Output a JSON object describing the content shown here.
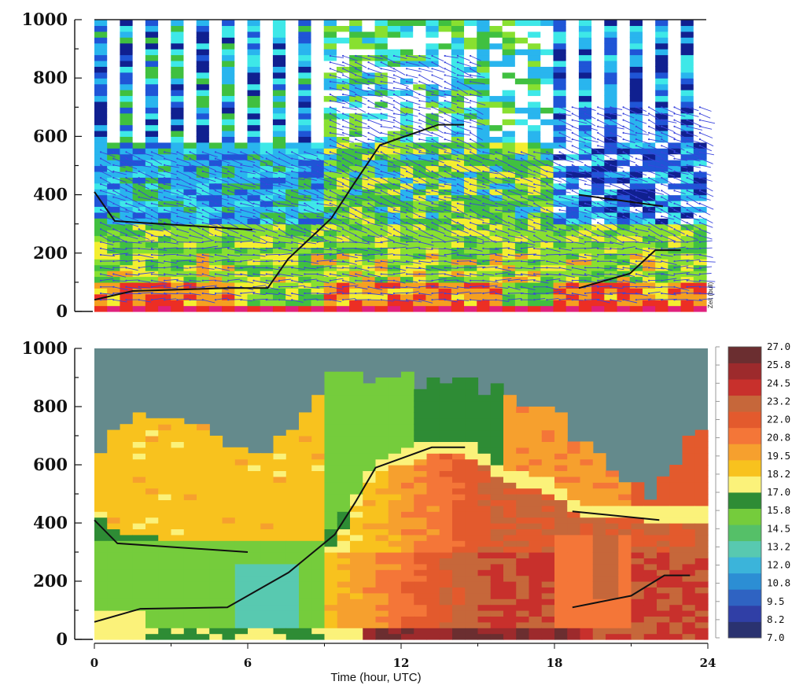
{
  "chart_data": [
    {
      "type": "heatmap",
      "panel": "top",
      "title": "",
      "xlabel": "",
      "ylabel": "",
      "xlim": [
        0,
        24
      ],
      "ylim": [
        0,
        1000
      ],
      "yticks": [
        "0",
        "200",
        "400",
        "600",
        "800",
        "1000"
      ],
      "side_label": "Zeit (bull)",
      "wind_barbs": true,
      "colors": {
        "no_data": "#ffffff",
        "deep_blue": "#102090",
        "blue": "#1f55d6",
        "light_blue": "#29b5ee",
        "cyan": "#3ee8e8",
        "green": "#40c040",
        "light_green": "#88e030",
        "yellow": "#f4ee30",
        "orange": "#f5a020",
        "red": "#ec2e24",
        "magenta": "#e0207c",
        "barb": "#3a44dd"
      },
      "series": [
        {
          "name": "",
          "x": [
            0,
            0.8,
            6.2
          ],
          "y": [
            410,
            310,
            280
          ]
        },
        {
          "name": "",
          "x": [
            0,
            1.5,
            5.2,
            6.8,
            7.6,
            9.3,
            10.2,
            11.2,
            13.5,
            14.5
          ],
          "y": [
            40,
            70,
            80,
            80,
            180,
            320,
            440,
            570,
            640,
            640
          ]
        },
        {
          "name": "",
          "x": [
            19,
            22.3
          ],
          "y": [
            400,
            360
          ]
        },
        {
          "name": "",
          "x": [
            19,
            21,
            22,
            23
          ],
          "y": [
            80,
            130,
            210,
            210
          ]
        }
      ]
    },
    {
      "type": "heatmap",
      "panel": "bottom",
      "title": "",
      "xlabel": "Time (hour, UTC)",
      "ylabel": "",
      "xlim": [
        0,
        24
      ],
      "ylim": [
        0,
        1000
      ],
      "xticks": [
        "0",
        "6",
        "12",
        "18",
        "24"
      ],
      "yticks": [
        "0",
        "200",
        "400",
        "600",
        "800",
        "1000"
      ],
      "colorbar_ticks": [
        "7.0",
        "8.2",
        "9.5",
        "10.8",
        "12.0",
        "13.2",
        "14.5",
        "15.8",
        "17.0",
        "18.2",
        "19.5",
        "20.8",
        "22.0",
        "23.2",
        "24.5",
        "25.8",
        "27.0"
      ],
      "colorbar_colors": [
        "#2a3270",
        "#303fa6",
        "#2f63c2",
        "#2c8ed4",
        "#3bb4da",
        "#58c9b0",
        "#55c068",
        "#75cc3c",
        "#2e8c35",
        "#fbf27a",
        "#f8c21e",
        "#f6a02e",
        "#f47638",
        "#e35a2d",
        "#c6673a",
        "#c8302c",
        "#9d2a2c",
        "#6b2e30"
      ],
      "no_data_color": "#648a8c",
      "series": [
        {
          "name": "",
          "x": [
            0,
            0.9,
            6.0
          ],
          "y": [
            410,
            330,
            300
          ]
        },
        {
          "name": "",
          "x": [
            0,
            1.8,
            5.2,
            7.6,
            9.4,
            10.2,
            11.0,
            13.2,
            14.5
          ],
          "y": [
            60,
            105,
            110,
            230,
            360,
            470,
            590,
            660,
            660
          ]
        },
        {
          "name": "",
          "x": [
            18.7,
            22.1
          ],
          "y": [
            440,
            410
          ]
        },
        {
          "name": "",
          "x": [
            18.7,
            21,
            22.3,
            23.3
          ],
          "y": [
            110,
            150,
            220,
            220
          ]
        }
      ]
    }
  ]
}
